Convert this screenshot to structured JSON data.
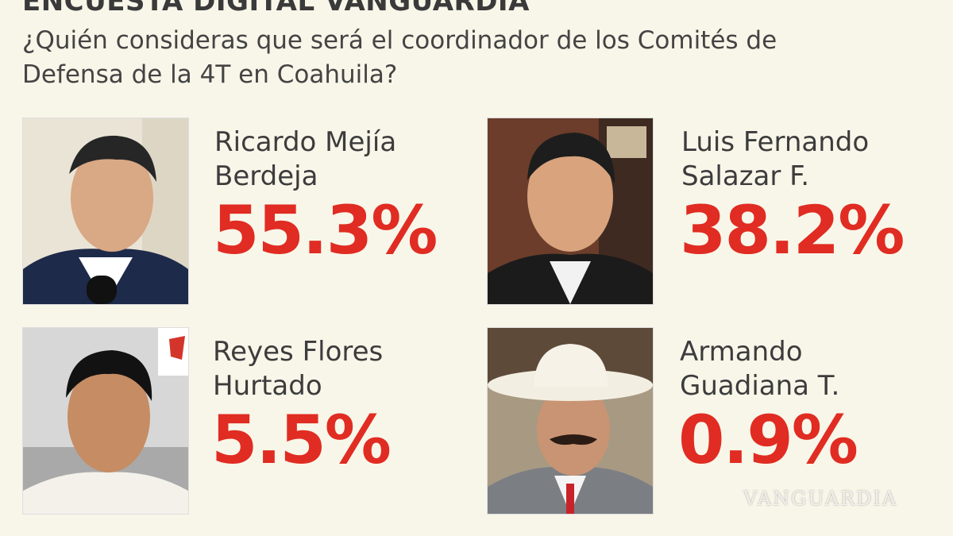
{
  "header": {
    "title": "ENCUESTA DIGITAL VANGUARDIA",
    "question": "¿Quién consideras que será el coordinador de los Comités de Defensa de la 4T en Coahuila?"
  },
  "candidates": [
    {
      "name_line1": "Ricardo Mejía",
      "name_line2": "Berdeja",
      "percent": "55.3%",
      "value": 55.3
    },
    {
      "name_line1": "Luis Fernando",
      "name_line2": "Salazar F.",
      "percent": "38.2%",
      "value": 38.2
    },
    {
      "name_line1": "Reyes Flores",
      "name_line2": "Hurtado",
      "percent": "5.5%",
      "value": 5.5
    },
    {
      "name_line1": "Armando",
      "name_line2": "Guadiana T.",
      "percent": "0.9%",
      "value": 0.9
    }
  ],
  "watermark": "VANGUARDIA",
  "colors": {
    "accent": "#e02c22",
    "background": "#f8f6e9",
    "text": "#3a3a3a"
  }
}
